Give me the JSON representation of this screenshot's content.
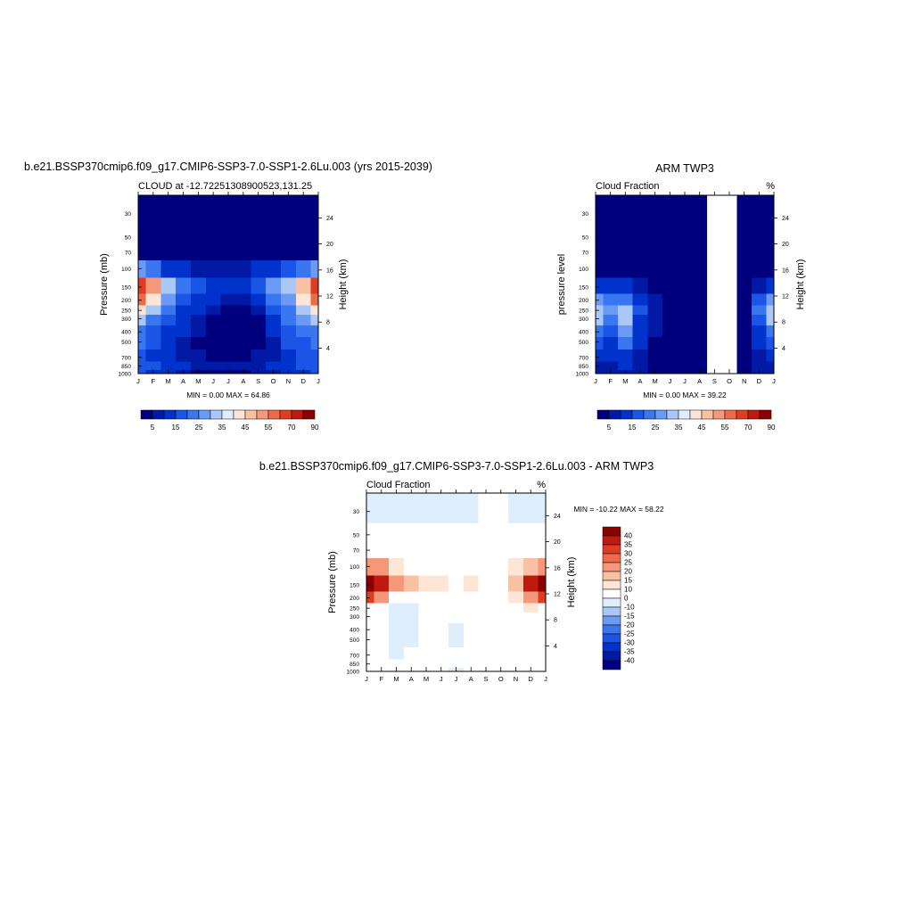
{
  "chart_data": [
    {
      "type": "heatmap",
      "title": "b.e21.BSSP370cmip6.f09_g17.CMIP6-SSP3-7.0-SSP1-2.6Lu.003 (yrs 2015-2039)",
      "subtitle_left": "CLOUD at -12.72251308900523,131.25",
      "subtitle_right": "",
      "ylabel": "Pressure (mb)",
      "ylabel_right": "Height (km)",
      "x_ticks": [
        "J",
        "F",
        "M",
        "A",
        "M",
        "J",
        "J",
        "A",
        "S",
        "O",
        "N",
        "D",
        "J"
      ],
      "y_ticks": [
        "30",
        "50",
        "70",
        "100",
        "150",
        "200",
        "250",
        "300",
        "400",
        "500",
        "700",
        "850",
        "1000"
      ],
      "y_ticks_right": [
        "24",
        "20",
        "16",
        "12",
        "8",
        "4"
      ],
      "stats": "MIN =   0.00 MAX =  64.86",
      "colorbar_labels": [
        "5",
        "15",
        "25",
        "35",
        "45",
        "55",
        "70",
        "90"
      ],
      "colorbar_colors": [
        "#00007f",
        "#001aa6",
        "#0033cc",
        "#1a55e6",
        "#3a76f0",
        "#6a9af5",
        "#a9c8f8",
        "#dfeefd",
        "#fde6d6",
        "#f9c1a4",
        "#f5987a",
        "#ef6a4b",
        "#e03c24",
        "#bf1a10",
        "#8c0000"
      ],
      "value_range": [
        0,
        64.86
      ],
      "months": [
        "J",
        "F",
        "M",
        "A",
        "M",
        "J",
        "J",
        "A",
        "S",
        "O",
        "N",
        "D",
        "J"
      ],
      "levels_mb": [
        30,
        50,
        70,
        100,
        150,
        200,
        250,
        300,
        400,
        500,
        700,
        850,
        1000
      ],
      "values": [
        [
          2,
          2,
          2,
          2,
          2,
          2,
          2,
          2,
          2,
          2,
          2,
          2,
          2
        ],
        [
          2,
          2,
          2,
          2,
          2,
          2,
          2,
          2,
          2,
          2,
          2,
          2,
          2
        ],
        [
          4,
          3,
          3,
          3,
          3,
          3,
          3,
          3,
          3,
          3,
          3,
          3,
          4
        ],
        [
          28,
          22,
          14,
          10,
          9,
          8,
          8,
          9,
          12,
          14,
          18,
          24,
          28
        ],
        [
          62,
          50,
          34,
          22,
          18,
          14,
          12,
          14,
          18,
          28,
          34,
          46,
          62
        ],
        [
          56,
          44,
          28,
          18,
          14,
          10,
          6,
          6,
          10,
          20,
          26,
          40,
          56
        ],
        [
          40,
          32,
          20,
          14,
          10,
          5,
          3,
          3,
          6,
          16,
          22,
          32,
          40
        ],
        [
          30,
          24,
          16,
          10,
          6,
          3,
          2,
          2,
          4,
          12,
          20,
          26,
          30
        ],
        [
          24,
          18,
          14,
          10,
          5,
          2,
          2,
          2,
          4,
          10,
          18,
          22,
          24
        ],
        [
          20,
          16,
          12,
          8,
          4,
          2,
          2,
          2,
          4,
          8,
          16,
          18,
          20
        ],
        [
          16,
          14,
          12,
          8,
          6,
          4,
          4,
          4,
          6,
          8,
          14,
          16,
          16
        ],
        [
          18,
          16,
          14,
          10,
          8,
          6,
          6,
          6,
          8,
          10,
          14,
          16,
          18
        ],
        [
          16,
          14,
          12,
          8,
          4,
          2,
          2,
          4,
          6,
          8,
          12,
          14,
          16
        ]
      ]
    },
    {
      "type": "heatmap",
      "title": "ARM TWP3",
      "subtitle_left": "Cloud Fraction",
      "subtitle_right": "%",
      "ylabel": "pressure level",
      "ylabel_right": "Height (km)",
      "x_ticks": [
        "J",
        "F",
        "M",
        "A",
        "M",
        "J",
        "J",
        "A",
        "S",
        "O",
        "N",
        "D",
        "J"
      ],
      "y_ticks": [
        "30",
        "50",
        "70",
        "100",
        "150",
        "200",
        "250",
        "300",
        "400",
        "500",
        "700",
        "850",
        "1000"
      ],
      "y_ticks_right": [
        "24",
        "20",
        "16",
        "12",
        "8",
        "4"
      ],
      "stats": "MIN =   0.00 MAX =  39.22",
      "colorbar_labels": [
        "5",
        "15",
        "25",
        "35",
        "45",
        "55",
        "70",
        "90"
      ],
      "colorbar_colors": [
        "#00007f",
        "#001aa6",
        "#0033cc",
        "#1a55e6",
        "#3a76f0",
        "#6a9af5",
        "#a9c8f8",
        "#dfeefd",
        "#fde6d6",
        "#f9c1a4",
        "#f5987a",
        "#ef6a4b",
        "#e03c24",
        "#bf1a10",
        "#8c0000"
      ],
      "value_range": [
        0,
        39.22
      ],
      "missing_months": [
        "S",
        "O"
      ],
      "months": [
        "J",
        "F",
        "M",
        "A",
        "M",
        "J",
        "J",
        "A",
        "S",
        "O",
        "N",
        "D",
        "J"
      ],
      "levels_mb": [
        30,
        50,
        70,
        100,
        150,
        200,
        250,
        300,
        400,
        500,
        700,
        850,
        1000
      ],
      "values": [
        [
          2,
          2,
          2,
          2,
          2,
          2,
          2,
          2,
          null,
          null,
          2,
          2,
          2
        ],
        [
          2,
          2,
          2,
          2,
          2,
          2,
          2,
          2,
          null,
          null,
          2,
          2,
          2
        ],
        [
          2,
          2,
          2,
          2,
          2,
          2,
          2,
          2,
          null,
          null,
          2,
          2,
          2
        ],
        [
          4,
          4,
          4,
          3,
          2,
          2,
          2,
          2,
          null,
          null,
          2,
          3,
          4
        ],
        [
          14,
          12,
          14,
          8,
          4,
          2,
          2,
          2,
          null,
          null,
          2,
          8,
          14
        ],
        [
          28,
          22,
          24,
          14,
          6,
          3,
          2,
          2,
          null,
          null,
          2,
          16,
          28
        ],
        [
          34,
          26,
          30,
          16,
          8,
          4,
          2,
          2,
          null,
          null,
          2,
          20,
          34
        ],
        [
          30,
          24,
          30,
          14,
          6,
          3,
          2,
          2,
          null,
          null,
          2,
          18,
          30
        ],
        [
          22,
          18,
          28,
          12,
          5,
          2,
          2,
          2,
          null,
          null,
          2,
          14,
          22
        ],
        [
          16,
          14,
          24,
          10,
          4,
          2,
          2,
          2,
          null,
          null,
          2,
          10,
          16
        ],
        [
          10,
          10,
          14,
          8,
          4,
          2,
          2,
          4,
          null,
          null,
          2,
          8,
          10
        ],
        [
          8,
          8,
          10,
          6,
          4,
          3,
          3,
          4,
          null,
          null,
          3,
          6,
          8
        ],
        [
          6,
          6,
          8,
          5,
          4,
          3,
          3,
          3,
          null,
          null,
          3,
          5,
          6
        ]
      ]
    },
    {
      "type": "heatmap",
      "title": "b.e21.BSSP370cmip6.f09_g17.CMIP6-SSP3-7.0-SSP1-2.6Lu.003 - ARM TWP3",
      "subtitle_left": "Cloud Fraction",
      "subtitle_right": "%",
      "ylabel": "Pressure (mb)",
      "ylabel_right": "Height (km)",
      "x_ticks": [
        "J",
        "F",
        "M",
        "A",
        "M",
        "J",
        "J",
        "A",
        "S",
        "O",
        "N",
        "D",
        "J"
      ],
      "y_ticks": [
        "30",
        "50",
        "70",
        "100",
        "150",
        "200",
        "250",
        "300",
        "400",
        "500",
        "700",
        "850",
        "1000"
      ],
      "y_ticks_right": [
        "24",
        "20",
        "16",
        "12",
        "8",
        "4"
      ],
      "stats": "MIN = -10.22 MAX =  58.22",
      "colorbar_labels": [
        "40",
        "35",
        "30",
        "25",
        "20",
        "15",
        "10",
        "0",
        "-10",
        "-15",
        "-20",
        "-25",
        "-30",
        "-35",
        "-40"
      ],
      "colorbar_colors": [
        "#8c0000",
        "#bf1a10",
        "#e03c24",
        "#ef6a4b",
        "#f5987a",
        "#f9c1a4",
        "#fde6d6",
        "#ffffff",
        "#dfeefd",
        "#a9c8f8",
        "#6a9af5",
        "#3a76f0",
        "#1a55e6",
        "#0033cc",
        "#001aa6",
        "#00007f"
      ],
      "value_range": [
        -10.22,
        58.22
      ],
      "missing_months": [
        "S",
        "O"
      ],
      "months": [
        "J",
        "F",
        "M",
        "A",
        "M",
        "J",
        "J",
        "A",
        "S",
        "O",
        "N",
        "D",
        "J"
      ],
      "levels_mb": [
        30,
        50,
        70,
        100,
        150,
        200,
        250,
        300,
        400,
        500,
        700,
        850,
        1000
      ],
      "values": [
        [
          -2,
          -2,
          -2,
          -2,
          -2,
          -2,
          -2,
          -2,
          null,
          null,
          -2,
          -2,
          -2
        ],
        [
          0,
          0,
          0,
          0,
          0,
          0,
          0,
          0,
          null,
          null,
          0,
          0,
          0
        ],
        [
          2,
          2,
          2,
          2,
          2,
          2,
          2,
          2,
          null,
          null,
          2,
          2,
          2
        ],
        [
          24,
          20,
          12,
          8,
          6,
          6,
          6,
          8,
          null,
          null,
          10,
          18,
          24
        ],
        [
          48,
          38,
          22,
          16,
          14,
          10,
          8,
          10,
          null,
          null,
          18,
          36,
          48
        ],
        [
          30,
          22,
          8,
          6,
          8,
          6,
          4,
          4,
          null,
          null,
          14,
          24,
          30
        ],
        [
          8,
          6,
          -2,
          -2,
          4,
          2,
          2,
          2,
          null,
          null,
          6,
          10,
          8
        ],
        [
          4,
          2,
          -3,
          -3,
          2,
          2,
          2,
          2,
          null,
          null,
          4,
          6,
          4
        ],
        [
          2,
          2,
          -4,
          -3,
          2,
          2,
          -2,
          2,
          null,
          null,
          4,
          4,
          2
        ],
        [
          4,
          2,
          -2,
          -2,
          2,
          2,
          -2,
          2,
          null,
          null,
          2,
          2,
          4
        ],
        [
          6,
          4,
          -2,
          2,
          2,
          2,
          2,
          2,
          null,
          null,
          4,
          4,
          6
        ],
        [
          4,
          4,
          2,
          2,
          2,
          2,
          2,
          2,
          null,
          null,
          2,
          4,
          4
        ],
        [
          4,
          4,
          2,
          2,
          2,
          2,
          -2,
          2,
          null,
          null,
          2,
          4,
          4
        ]
      ]
    }
  ]
}
